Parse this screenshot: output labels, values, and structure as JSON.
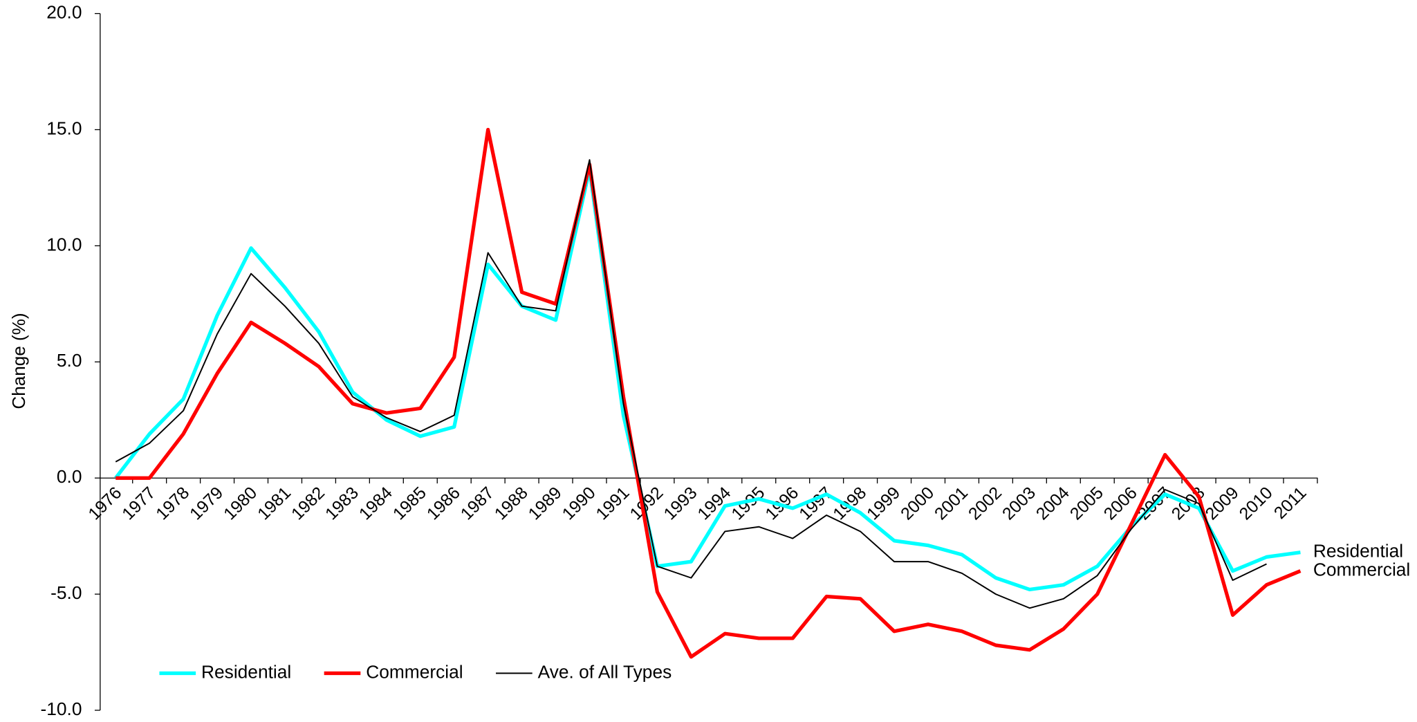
{
  "chart_data": {
    "type": "line",
    "y_label": "Change (%)",
    "categories": [
      "1976",
      "1977",
      "1978",
      "1979",
      "1980",
      "1981",
      "1982",
      "1983",
      "1984",
      "1985",
      "1986",
      "1987",
      "1988",
      "1989",
      "1990",
      "1991",
      "1992",
      "1993",
      "1994",
      "1995",
      "1996",
      "1997",
      "1998",
      "1999",
      "2000",
      "2001",
      "2002",
      "2003",
      "2004",
      "2005",
      "2006",
      "2007",
      "2008",
      "2009",
      "2010",
      "2011"
    ],
    "series": [
      {
        "name": "Residential",
        "color": "#00ffff",
        "width": 4,
        "end_label": true,
        "values": [
          0,
          1.9,
          3.4,
          7.0,
          9.9,
          8.2,
          6.3,
          3.7,
          2.5,
          1.8,
          2.2,
          9.2,
          7.4,
          6.8,
          13.3,
          2.7,
          -3.8,
          -3.6,
          -1.2,
          -0.9,
          -1.3,
          -0.7,
          -1.5,
          -2.7,
          -2.9,
          -3.3,
          -4.3,
          -4.8,
          -4.6,
          -3.8,
          -2.1,
          -0.7,
          -1.3,
          -4.0,
          -3.4,
          -3.2
        ]
      },
      {
        "name": "Commercial",
        "color": "#ff0000",
        "width": 4,
        "end_label": true,
        "values": [
          0,
          0,
          1.9,
          4.5,
          6.7,
          5.8,
          4.8,
          3.2,
          2.8,
          3.0,
          5.2,
          15.0,
          8.0,
          7.5,
          13.5,
          3.5,
          -4.9,
          -7.7,
          -6.7,
          -6.9,
          -6.9,
          -5.1,
          -5.2,
          -6.6,
          -6.3,
          -6.6,
          -7.2,
          -7.4,
          -6.5,
          -5.0,
          -2.0,
          1.0,
          -0.8,
          -5.9,
          -4.6,
          -4.0
        ]
      },
      {
        "name": "Ave. of All Types",
        "color": "#000000",
        "width": 1.5,
        "end_label": false,
        "values": [
          0.7,
          1.5,
          2.9,
          6.2,
          8.8,
          7.4,
          5.8,
          3.5,
          2.6,
          2.0,
          2.7,
          9.7,
          7.4,
          7.2,
          13.7,
          3.2,
          -3.8,
          -4.3,
          -2.3,
          -2.1,
          -2.6,
          -1.6,
          -2.3,
          -3.6,
          -3.6,
          -4.1,
          -5.0,
          -5.6,
          -5.2,
          -4.2,
          -2.2,
          -0.5,
          -1.1,
          -4.4,
          -3.7,
          null
        ]
      }
    ],
    "ylim": [
      -10,
      20
    ],
    "yticks": [
      {
        "value": -10,
        "label": "-10.0"
      },
      {
        "value": -5,
        "label": "-5.0"
      },
      {
        "value": 0,
        "label": "0.0"
      },
      {
        "value": 5,
        "label": "5.0"
      },
      {
        "value": 10,
        "label": "10.0"
      },
      {
        "value": 15,
        "label": "15.0"
      },
      {
        "value": 20,
        "label": "20.0"
      }
    ],
    "grid": false,
    "legend": "bottom-left"
  }
}
